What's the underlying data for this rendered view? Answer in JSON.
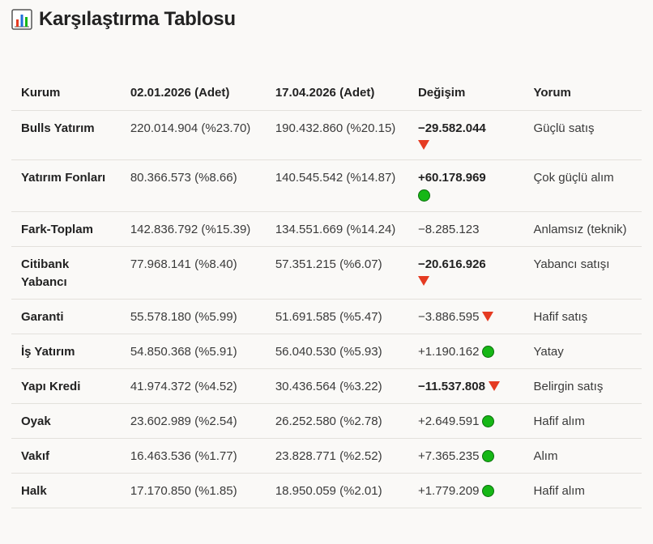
{
  "title": "Karşılaştırma Tablosu",
  "title_icon": "bar-chart-icon",
  "colors": {
    "down": "#e53b22",
    "up": "#16b716"
  },
  "table": {
    "headers": [
      "Kurum",
      "02.01.2026 (Adet)",
      "17.04.2026 (Adet)",
      "Değişim",
      "Yorum"
    ],
    "rows": [
      {
        "kurum": "Bulls Yatırım",
        "d1": "220.014.904 (%23.70)",
        "d2": "190.432.860 (%20.15)",
        "change": "−29.582.044",
        "dir": "down",
        "strong": true,
        "wrap": true,
        "yorum": "Güçlü satış"
      },
      {
        "kurum": "Yatırım Fonları",
        "d1": "80.366.573 (%8.66)",
        "d2": "140.545.542 (%14.87)",
        "change": "+60.178.969",
        "dir": "up",
        "strong": true,
        "wrap": true,
        "yorum": "Çok güçlü alım"
      },
      {
        "kurum": "Fark-Toplam",
        "d1": "142.836.792 (%15.39)",
        "d2": "134.551.669 (%14.24)",
        "change": "−8.285.123",
        "dir": "none",
        "strong": false,
        "wrap": false,
        "yorum": "Anlamsız (teknik)"
      },
      {
        "kurum": "Citibank Yabancı",
        "d1": "77.968.141 (%8.40)",
        "d2": "57.351.215 (%6.07)",
        "change": "−20.616.926",
        "dir": "down",
        "strong": true,
        "wrap": true,
        "yorum": "Yabancı satışı"
      },
      {
        "kurum": "Garanti",
        "d1": "55.578.180 (%5.99)",
        "d2": "51.691.585 (%5.47)",
        "change": "−3.886.595",
        "dir": "down",
        "strong": false,
        "wrap": false,
        "yorum": "Hafif satış"
      },
      {
        "kurum": "İş Yatırım",
        "d1": "54.850.368 (%5.91)",
        "d2": "56.040.530 (%5.93)",
        "change": "+1.190.162",
        "dir": "up",
        "strong": false,
        "wrap": false,
        "yorum": "Yatay"
      },
      {
        "kurum": "Yapı Kredi",
        "d1": "41.974.372 (%4.52)",
        "d2": "30.436.564 (%3.22)",
        "change": "−11.537.808",
        "dir": "down",
        "strong": true,
        "wrap": false,
        "yorum": "Belirgin satış"
      },
      {
        "kurum": "Oyak",
        "d1": "23.602.989 (%2.54)",
        "d2": "26.252.580 (%2.78)",
        "change": "+2.649.591",
        "dir": "up",
        "strong": false,
        "wrap": false,
        "yorum": "Hafif alım"
      },
      {
        "kurum": "Vakıf",
        "d1": "16.463.536 (%1.77)",
        "d2": "23.828.771 (%2.52)",
        "change": "+7.365.235",
        "dir": "up",
        "strong": false,
        "wrap": false,
        "yorum": "Alım"
      },
      {
        "kurum": "Halk",
        "d1": "17.170.850 (%1.85)",
        "d2": "18.950.059 (%2.01)",
        "change": "+1.779.209",
        "dir": "up",
        "strong": false,
        "wrap": false,
        "yorum": "Hafif alım"
      }
    ]
  }
}
